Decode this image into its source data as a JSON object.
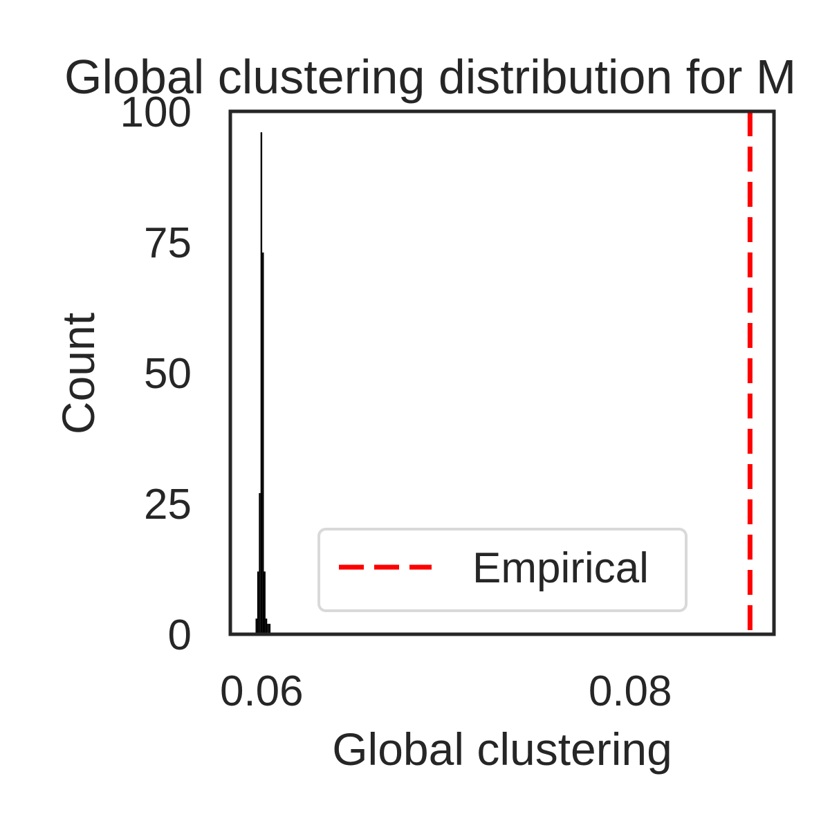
{
  "chart_data": {
    "type": "bar",
    "title": "Global clustering distribution for M",
    "xlabel": "Global clustering",
    "ylabel": "Count",
    "xlim": [
      0.0583,
      0.0878
    ],
    "ylim": [
      0,
      100
    ],
    "x_ticks": [
      {
        "value": 0.06,
        "label": "0.06"
      },
      {
        "value": 0.08,
        "label": "0.08"
      }
    ],
    "y_ticks": [
      {
        "value": 0,
        "label": "0"
      },
      {
        "value": 25,
        "label": "25"
      },
      {
        "value": 50,
        "label": "50"
      },
      {
        "value": 75,
        "label": "75"
      },
      {
        "value": 100,
        "label": "100"
      }
    ],
    "bins": [
      {
        "x0": 0.05967,
        "x1": 0.05976,
        "count": 3
      },
      {
        "x0": 0.05976,
        "x1": 0.05985,
        "count": 12
      },
      {
        "x0": 0.05985,
        "x1": 0.05994,
        "count": 27
      },
      {
        "x0": 0.05994,
        "x1": 0.06003,
        "count": 96
      },
      {
        "x0": 0.06003,
        "x1": 0.06012,
        "count": 73
      },
      {
        "x0": 0.06012,
        "x1": 0.06021,
        "count": 12
      },
      {
        "x0": 0.06021,
        "x1": 0.0603,
        "count": 3
      },
      {
        "x0": 0.0603,
        "x1": 0.06039,
        "count": 2
      },
      {
        "x0": 0.06039,
        "x1": 0.06048,
        "count": 2
      }
    ],
    "bar_color": "#000000",
    "empirical": {
      "value": 0.0865,
      "label": "Empirical",
      "color": "#ff0000",
      "style": "dashed"
    },
    "legend_position": "lower-center",
    "grid": false
  }
}
